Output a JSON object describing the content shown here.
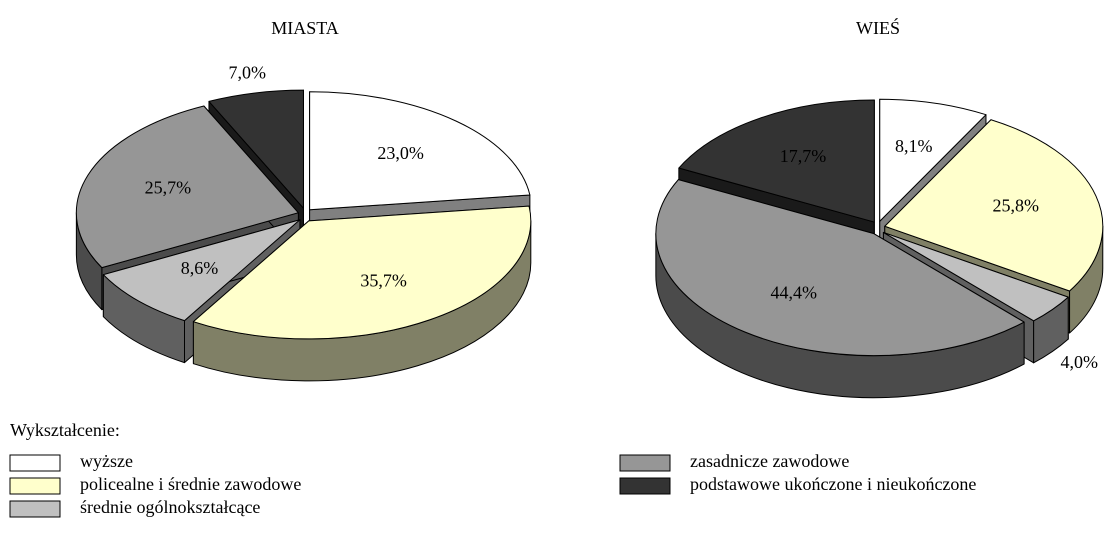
{
  "chart_data": [
    {
      "type": "pie",
      "title": "MIASTA",
      "categories": [
        "wyższe",
        "policealne i średnie zawodowe",
        "średnie ogólnokształcące",
        "zasadnicze zawodowe",
        "podstawowe ukończone i nieukończone"
      ],
      "values": [
        23.0,
        35.7,
        8.6,
        25.7,
        7.0
      ],
      "value_labels": [
        "23,0%",
        "35,7%",
        "8,6%",
        "25,7%",
        "7,0%"
      ],
      "colors": [
        "#ffffff",
        "#ffffcc",
        "#c0c0c0",
        "#969696",
        "#333333"
      ]
    },
    {
      "type": "pie",
      "title": "WIEŚ",
      "categories": [
        "wyższe",
        "policealne i średnie zawodowe",
        "średnie ogólnokształcące",
        "zasadnicze zawodowe",
        "podstawowe ukończone i nieukończone"
      ],
      "values": [
        8.1,
        25.8,
        4.0,
        44.4,
        17.7
      ],
      "value_labels": [
        "8,1%",
        "25,8%",
        "4,0%",
        "44,4%",
        "17,7%"
      ],
      "colors": [
        "#ffffff",
        "#ffffcc",
        "#c0c0c0",
        "#969696",
        "#333333"
      ]
    }
  ],
  "legend_title": "Wykształcenie:"
}
